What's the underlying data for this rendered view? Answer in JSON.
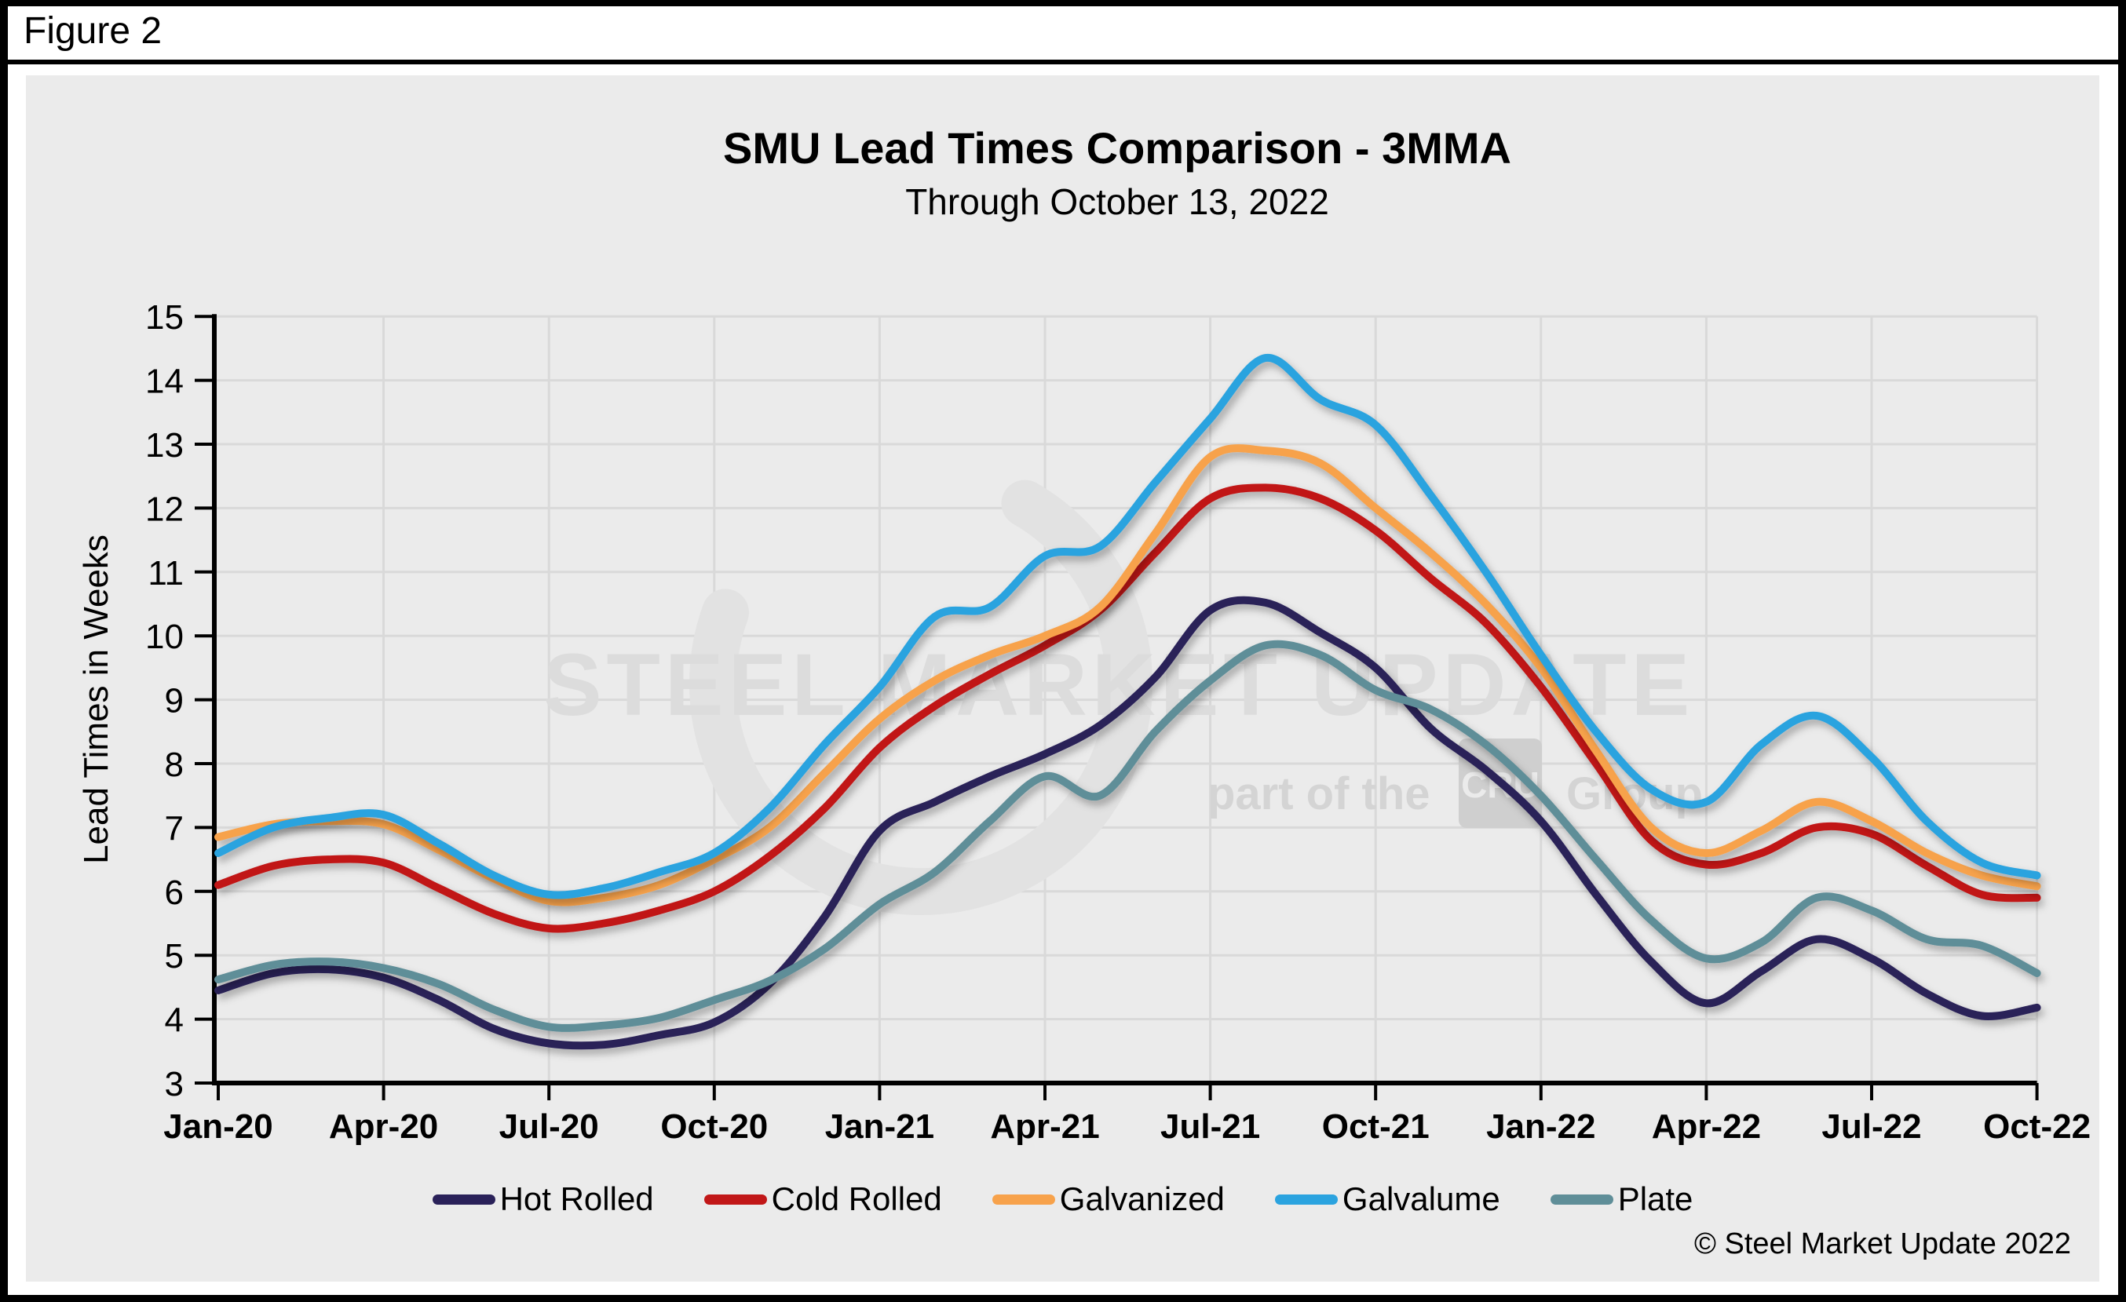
{
  "figure_label": "Figure 2",
  "header": {
    "title": "SMU Lead Times Comparison - 3MMA",
    "subtitle": "Through October 13, 2022"
  },
  "footer": {
    "copyright": "© Steel Market Update 2022"
  },
  "watermark": {
    "line1": "STEEL MARKET UPDATE",
    "line2_prefix": "part of the",
    "line2_logo": "CRU",
    "line2_suffix": "Group"
  },
  "colors": {
    "panel_bg": "#EBEBEB",
    "gridline": "#D9D9D9",
    "axis": "#000000"
  },
  "chart_data": {
    "type": "line",
    "title": "SMU Lead Times Comparison - 3MMA",
    "subtitle": "Through October 13, 2022",
    "ylabel": "Lead Times in Weeks",
    "ylim": [
      3,
      15
    ],
    "y_ticks": [
      3,
      4,
      5,
      6,
      7,
      8,
      9,
      10,
      11,
      12,
      13,
      14,
      15
    ],
    "x_tick_labels": [
      "Jan-20",
      "Apr-20",
      "Jul-20",
      "Oct-20",
      "Jan-21",
      "Apr-21",
      "Jul-21",
      "Oct-21",
      "Jan-22",
      "Apr-22",
      "Jul-22",
      "Oct-22"
    ],
    "grid": true,
    "legend_position": "bottom",
    "categories": [
      "Jan-20",
      "Feb-20",
      "Mar-20",
      "Apr-20",
      "May-20",
      "Jun-20",
      "Jul-20",
      "Aug-20",
      "Sep-20",
      "Oct-20",
      "Nov-20",
      "Dec-20",
      "Jan-21",
      "Feb-21",
      "Mar-21",
      "Apr-21",
      "May-21",
      "Jun-21",
      "Jul-21",
      "Aug-21",
      "Sep-21",
      "Oct-21",
      "Nov-21",
      "Dec-21",
      "Jan-22",
      "Feb-22",
      "Mar-22",
      "Apr-22",
      "May-22",
      "Jun-22",
      "Jul-22",
      "Aug-22",
      "Sep-22",
      "Oct-22"
    ],
    "series": [
      {
        "name": "Hot Rolled",
        "color": "#2A2159",
        "values": [
          4.45,
          4.72,
          4.78,
          4.65,
          4.3,
          3.85,
          3.62,
          3.6,
          3.75,
          3.95,
          4.55,
          5.6,
          6.95,
          7.4,
          7.8,
          8.15,
          8.6,
          9.35,
          10.4,
          10.52,
          10.05,
          9.5,
          8.55,
          7.9,
          7.1,
          5.95,
          4.9,
          4.25,
          4.75,
          5.25,
          4.95,
          4.4,
          4.05,
          4.18
        ]
      },
      {
        "name": "Cold Rolled",
        "color": "#C11718",
        "values": [
          6.1,
          6.4,
          6.5,
          6.45,
          6.05,
          5.65,
          5.42,
          5.5,
          5.7,
          6.0,
          6.55,
          7.3,
          8.25,
          8.9,
          9.4,
          9.85,
          10.4,
          11.3,
          12.15,
          12.32,
          12.15,
          11.65,
          10.9,
          10.2,
          9.2,
          8.0,
          6.8,
          6.42,
          6.6,
          7.0,
          6.9,
          6.4,
          5.95,
          5.9
        ]
      },
      {
        "name": "Galvanized",
        "color": "#F7A24B",
        "values": [
          6.85,
          7.05,
          7.1,
          7.05,
          6.65,
          6.2,
          5.85,
          5.9,
          6.1,
          6.5,
          7.0,
          7.85,
          8.7,
          9.3,
          9.7,
          10.0,
          10.45,
          11.6,
          12.8,
          12.9,
          12.7,
          12.0,
          11.3,
          10.5,
          9.5,
          8.2,
          7.0,
          6.6,
          6.95,
          7.4,
          7.1,
          6.6,
          6.25,
          6.08
        ]
      },
      {
        "name": "Galvalume",
        "color": "#2BA3DF",
        "values": [
          6.6,
          7.0,
          7.15,
          7.2,
          6.75,
          6.25,
          5.95,
          6.05,
          6.3,
          6.6,
          7.3,
          8.3,
          9.2,
          10.3,
          10.45,
          11.25,
          11.4,
          12.4,
          13.4,
          14.35,
          13.7,
          13.3,
          12.2,
          11.0,
          9.7,
          8.5,
          7.6,
          7.4,
          8.3,
          8.75,
          8.1,
          7.1,
          6.45,
          6.25
        ]
      },
      {
        "name": "Plate",
        "color": "#5F8E98",
        "values": [
          4.62,
          4.85,
          4.9,
          4.8,
          4.55,
          4.15,
          3.88,
          3.9,
          4.02,
          4.3,
          4.6,
          5.1,
          5.8,
          6.3,
          7.1,
          7.8,
          7.5,
          8.5,
          9.3,
          9.85,
          9.7,
          9.15,
          8.85,
          8.3,
          7.5,
          6.5,
          5.55,
          4.95,
          5.2,
          5.9,
          5.7,
          5.25,
          5.15,
          4.72
        ]
      }
    ]
  }
}
